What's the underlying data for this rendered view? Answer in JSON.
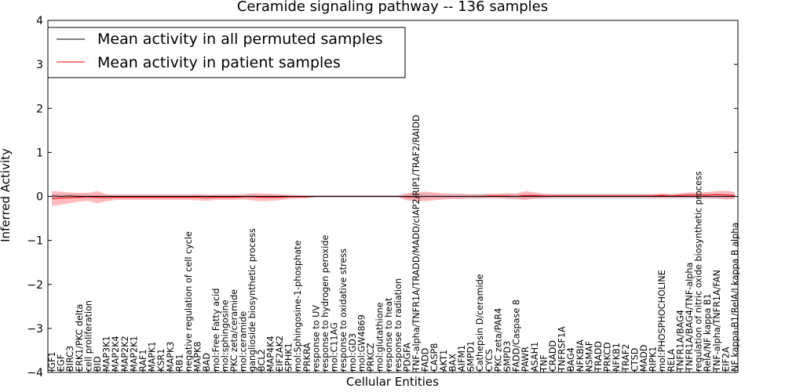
{
  "chart_data": {
    "type": "line",
    "title": "Ceramide signaling pathway -- 136 samples",
    "xlabel": "Cellular Entities",
    "ylabel": "Inferred Activity",
    "ylim": [
      -4,
      4
    ],
    "yticks": [
      -4,
      -3,
      -2,
      -1,
      0,
      1,
      2,
      3,
      4
    ],
    "grid": false,
    "legend_position": "top-left",
    "categories": [
      "IGF1",
      "EGF",
      "BIRC3",
      "ERK1/PKC delta",
      "cell proliferation",
      "BID",
      "MAP3K1",
      "MAP2K4",
      "MAP2K2",
      "MAP2K1",
      "RAF1",
      "MAPK1",
      "KSR1",
      "MAPK3",
      "RB1",
      "negative regulation of cell cycle",
      "MAPK8",
      "BAD",
      "mol:Free Fatty acid",
      "mol:sphingosine",
      "PKC zeta/ceramide",
      "mol:ceramide",
      "ganglioside biosynthetic process",
      "BCL2",
      "MAP4K4",
      "EIF2AK2",
      "SPHK1",
      "mol:Sphingosine-1-phosphate",
      "PRKRA",
      "response to UV",
      "response to hydrogen peroxide",
      "mol:C11AG",
      "response to oxidative stress",
      "mol:GD3",
      "mol:GW4869",
      "PRKCZ",
      "mol:glutathione",
      "response to heat",
      "response to radiation",
      "PDGFA",
      "TNF-alpha/TNFR1A/TRADD/MADD/cIAP2/RIP1/TRAF2/RAIDD",
      "FADD",
      "CASP8",
      "AKT1",
      "BAX",
      "AIFM1",
      "SMPD1",
      "Cathepsin D/ceramide",
      "CYCS",
      "PKC zeta/PAR4",
      "SMPD3",
      "FADD/Caspase 8",
      "PAWR",
      "ASAH1",
      "TNF",
      "CRADD",
      "TNFRSF1A",
      "BAG4",
      "NFKBIA",
      "NSMAF",
      "TRADD",
      "PRKCD",
      "NFKB1",
      "TRAF2",
      "CTSD",
      "MADD",
      "RIPK1",
      "mol:PHOSPHOCHOLINE",
      "RELA",
      "TNFR1A/BAG4",
      "TNFR1A/BAG4/TNF-alpha",
      "regulation of nitric oxide biosynthetic process",
      "RelA/NF kappa B1",
      "TNF-alpha/TNFR1A/FAN",
      "EIF2A",
      "NF kappa B1/RelA/I kappa B alpha"
    ],
    "series": [
      {
        "name": "Mean activity in all permuted samples",
        "color": "#000000",
        "values": [
          0.01,
          0.0,
          0.01,
          0.0,
          0.0,
          0.0,
          0.0,
          0.0,
          0.0,
          0.0,
          0.0,
          0.0,
          0.0,
          0.0,
          0.0,
          0.0,
          0.0,
          0.0,
          0.0,
          0.0,
          0.0,
          0.0,
          0.0,
          0.0,
          0.0,
          0.0,
          0.0,
          0.0,
          0.0,
          0.0,
          0.0,
          0.0,
          0.0,
          0.0,
          0.0,
          0.0,
          0.0,
          0.0,
          0.0,
          0.0,
          0.0,
          0.0,
          0.0,
          0.0,
          0.0,
          0.0,
          0.0,
          0.0,
          0.0,
          0.0,
          0.0,
          0.0,
          0.0,
          0.0,
          0.0,
          0.0,
          0.0,
          0.0,
          0.0,
          0.0,
          0.0,
          0.0,
          0.0,
          0.0,
          0.0,
          0.0,
          0.0,
          0.0,
          0.0,
          0.0,
          0.0,
          0.0,
          0.0,
          0.0,
          0.0,
          0.0
        ],
        "band": [
          0.05,
          0.05,
          0.05,
          0.05,
          0.05,
          0.05,
          0.04,
          0.04,
          0.04,
          0.04,
          0.04,
          0.04,
          0.04,
          0.04,
          0.04,
          0.04,
          0.04,
          0.04,
          0.04,
          0.04,
          0.04,
          0.04,
          0.04,
          0.04,
          0.04,
          0.04,
          0.03,
          0.03,
          0.03,
          0.03,
          0.03,
          0.03,
          0.03,
          0.03,
          0.03,
          0.03,
          0.03,
          0.03,
          0.03,
          0.05,
          0.06,
          0.06,
          0.05,
          0.05,
          0.05,
          0.05,
          0.05,
          0.05,
          0.05,
          0.05,
          0.06,
          0.06,
          0.06,
          0.06,
          0.06,
          0.06,
          0.06,
          0.06,
          0.06,
          0.06,
          0.06,
          0.06,
          0.06,
          0.06,
          0.06,
          0.06,
          0.06,
          0.06,
          0.06,
          0.06,
          0.06,
          0.06,
          0.06,
          0.06,
          0.06,
          0.06
        ]
      },
      {
        "name": "Mean activity in patient samples",
        "color": "#ff0000",
        "values": [
          -0.05,
          -0.04,
          -0.03,
          -0.02,
          -0.01,
          -0.02,
          -0.03,
          -0.02,
          -0.02,
          -0.02,
          -0.02,
          -0.02,
          -0.02,
          -0.02,
          -0.02,
          -0.02,
          -0.02,
          -0.03,
          -0.02,
          -0.02,
          -0.02,
          -0.01,
          -0.01,
          -0.02,
          -0.02,
          -0.02,
          -0.01,
          -0.01,
          -0.01,
          0.0,
          0.0,
          0.0,
          0.0,
          0.0,
          0.0,
          0.0,
          0.0,
          0.0,
          0.0,
          -0.01,
          -0.01,
          0.0,
          0.0,
          0.0,
          0.0,
          0.0,
          0.0,
          0.0,
          0.01,
          0.01,
          0.01,
          0.0,
          0.02,
          0.02,
          0.01,
          0.01,
          0.01,
          0.01,
          0.01,
          0.01,
          0.01,
          0.01,
          0.01,
          0.01,
          0.01,
          0.01,
          0.01,
          0.02,
          0.01,
          0.02,
          0.03,
          0.03,
          0.03,
          0.04,
          0.03,
          0.02
        ],
        "band": [
          0.17,
          0.15,
          0.12,
          0.1,
          0.09,
          0.14,
          0.08,
          0.06,
          0.06,
          0.06,
          0.06,
          0.06,
          0.06,
          0.06,
          0.06,
          0.06,
          0.07,
          0.07,
          0.06,
          0.06,
          0.06,
          0.06,
          0.08,
          0.09,
          0.08,
          0.07,
          0.05,
          0.04,
          0.03,
          0.02,
          0.02,
          0.02,
          0.02,
          0.02,
          0.02,
          0.02,
          0.02,
          0.02,
          0.02,
          0.08,
          0.1,
          0.11,
          0.09,
          0.07,
          0.06,
          0.06,
          0.05,
          0.05,
          0.05,
          0.05,
          0.06,
          0.06,
          0.1,
          0.07,
          0.05,
          0.04,
          0.04,
          0.04,
          0.04,
          0.04,
          0.04,
          0.04,
          0.04,
          0.04,
          0.04,
          0.04,
          0.04,
          0.05,
          0.04,
          0.05,
          0.06,
          0.06,
          0.07,
          0.08,
          0.1,
          0.08
        ]
      }
    ]
  }
}
